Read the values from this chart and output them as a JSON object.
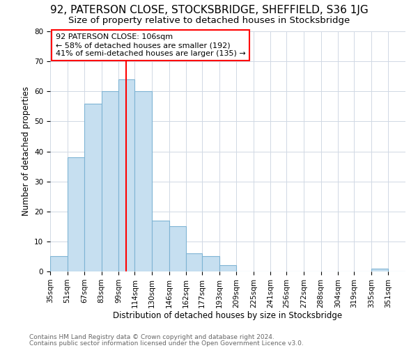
{
  "title": "92, PATERSON CLOSE, STOCKSBRIDGE, SHEFFIELD, S36 1JG",
  "subtitle": "Size of property relative to detached houses in Stocksbridge",
  "xlabel": "Distribution of detached houses by size in Stocksbridge",
  "ylabel": "Number of detached properties",
  "footer_line1": "Contains HM Land Registry data © Crown copyright and database right 2024.",
  "footer_line2": "Contains public sector information licensed under the Open Government Licence v3.0.",
  "bin_labels": [
    "35sqm",
    "51sqm",
    "67sqm",
    "83sqm",
    "99sqm",
    "114sqm",
    "130sqm",
    "146sqm",
    "162sqm",
    "177sqm",
    "193sqm",
    "209sqm",
    "225sqm",
    "241sqm",
    "256sqm",
    "272sqm",
    "288sqm",
    "304sqm",
    "319sqm",
    "335sqm",
    "351sqm"
  ],
  "bar_values": [
    5,
    38,
    56,
    60,
    64,
    60,
    17,
    15,
    6,
    5,
    2,
    0,
    0,
    0,
    0,
    0,
    0,
    0,
    0,
    1,
    0
  ],
  "bar_color": "#c6dff0",
  "bar_edge_color": "#7eb4d4",
  "vline_x": 106,
  "vline_color": "red",
  "annotation_text": "92 PATERSON CLOSE: 106sqm\n← 58% of detached houses are smaller (192)\n41% of semi-detached houses are larger (135) →",
  "annotation_box_color": "white",
  "annotation_box_edge_color": "red",
  "ylim": [
    0,
    80
  ],
  "yticks": [
    0,
    10,
    20,
    30,
    40,
    50,
    60,
    70,
    80
  ],
  "grid_color": "#d0d8e4",
  "background_color": "white",
  "title_fontsize": 11,
  "subtitle_fontsize": 9.5,
  "axis_label_fontsize": 8.5,
  "tick_fontsize": 7.5,
  "annotation_fontsize": 8,
  "footer_fontsize": 6.5
}
